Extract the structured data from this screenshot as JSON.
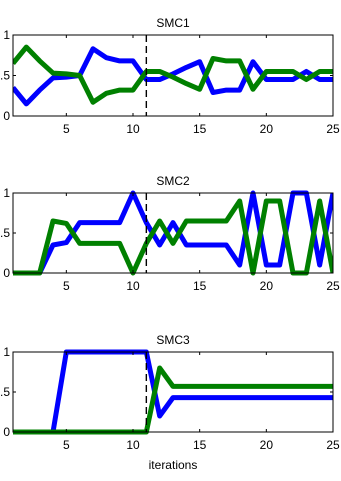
{
  "chart_data": [
    {
      "type": "line",
      "title": "SMC1",
      "xlim": [
        1,
        25
      ],
      "ylim": [
        0,
        1
      ],
      "xticks": [
        5,
        10,
        15,
        20,
        25
      ],
      "xtick_labels": [
        "5",
        "10",
        "15",
        "20",
        "25"
      ],
      "yticks": [
        0,
        0.5,
        1
      ],
      "ytick_labels": [
        "0",
        "0.5",
        "1"
      ],
      "xlabel": "",
      "vline_x": 11,
      "x": [
        1,
        2,
        3,
        4,
        5,
        6,
        7,
        8,
        9,
        10,
        11,
        12,
        13,
        14,
        15,
        16,
        17,
        18,
        19,
        20,
        21,
        22,
        23,
        24,
        25
      ],
      "series": [
        {
          "color": "#0000ff",
          "values": [
            0.35,
            0.15,
            0.32,
            0.47,
            0.48,
            0.5,
            0.83,
            0.72,
            0.68,
            0.68,
            0.45,
            0.45,
            0.52,
            0.6,
            0.67,
            0.29,
            0.32,
            0.32,
            0.67,
            0.45,
            0.45,
            0.45,
            0.55,
            0.45,
            0.45
          ]
        },
        {
          "color": "#008000",
          "values": [
            0.65,
            0.85,
            0.68,
            0.53,
            0.52,
            0.5,
            0.17,
            0.28,
            0.32,
            0.32,
            0.55,
            0.55,
            0.48,
            0.4,
            0.33,
            0.71,
            0.68,
            0.68,
            0.33,
            0.55,
            0.55,
            0.55,
            0.45,
            0.55,
            0.55
          ]
        }
      ]
    },
    {
      "type": "line",
      "title": "SMC2",
      "xlim": [
        1,
        25
      ],
      "ylim": [
        0,
        1
      ],
      "xticks": [
        5,
        10,
        15,
        20,
        25
      ],
      "xtick_labels": [
        "5",
        "10",
        "15",
        "20",
        "25"
      ],
      "yticks": [
        0,
        0.5,
        1
      ],
      "ytick_labels": [
        "0",
        "0.5",
        "1"
      ],
      "xlabel": "",
      "vline_x": 11,
      "x": [
        1,
        2,
        3,
        4,
        5,
        6,
        7,
        8,
        9,
        10,
        11,
        12,
        13,
        14,
        15,
        16,
        17,
        18,
        19,
        20,
        21,
        22,
        23,
        24,
        25
      ],
      "series": [
        {
          "color": "#0000ff",
          "values": [
            0,
            0,
            0,
            0.35,
            0.38,
            0.63,
            0.63,
            0.63,
            0.63,
            1,
            0.63,
            0.35,
            0.63,
            0.35,
            0.35,
            0.35,
            0.35,
            0.1,
            1,
            0.1,
            0.1,
            1,
            1,
            0.1,
            1
          ]
        },
        {
          "color": "#008000",
          "values": [
            0,
            0,
            0,
            0.65,
            0.62,
            0.37,
            0.37,
            0.37,
            0.37,
            0,
            0.37,
            0.65,
            0.37,
            0.65,
            0.65,
            0.65,
            0.65,
            0.9,
            0,
            0.9,
            0.9,
            0,
            0,
            0.9,
            0
          ]
        }
      ]
    },
    {
      "type": "line",
      "title": "SMC3",
      "xlim": [
        1,
        25
      ],
      "ylim": [
        0,
        1
      ],
      "xticks": [
        5,
        10,
        15,
        20,
        25
      ],
      "xtick_labels": [
        "5",
        "10",
        "15",
        "20",
        "25"
      ],
      "yticks": [
        0,
        0.5,
        1
      ],
      "ytick_labels": [
        "0",
        "0.5",
        "1"
      ],
      "xlabel": "iterations",
      "vline_x": 11,
      "x": [
        1,
        2,
        3,
        4,
        5,
        6,
        7,
        8,
        9,
        10,
        11,
        12,
        13,
        14,
        15,
        16,
        17,
        18,
        19,
        20,
        21,
        22,
        23,
        24,
        25
      ],
      "series": [
        {
          "color": "#0000ff",
          "values": [
            0,
            0,
            0,
            0,
            1,
            1,
            1,
            1,
            1,
            1,
            1,
            0.2,
            0.43,
            0.43,
            0.43,
            0.43,
            0.43,
            0.43,
            0.43,
            0.43,
            0.43,
            0.43,
            0.43,
            0.43,
            0.43
          ]
        },
        {
          "color": "#008000",
          "values": [
            0,
            0,
            0,
            0,
            0,
            0,
            0,
            0,
            0,
            0,
            0,
            0.8,
            0.57,
            0.57,
            0.57,
            0.57,
            0.57,
            0.57,
            0.57,
            0.57,
            0.57,
            0.57,
            0.57,
            0.57,
            0.57
          ]
        }
      ]
    }
  ]
}
